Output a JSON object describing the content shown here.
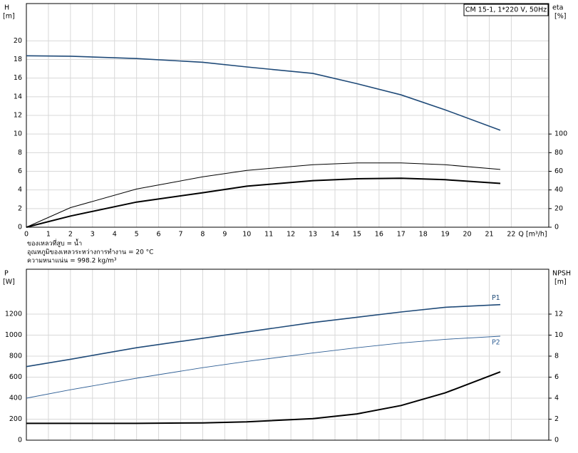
{
  "chart_data": [
    {
      "type": "line",
      "box_label": "CM 15-1, 1*220 V, 50Hz",
      "y_label": "H",
      "y_unit": "[m]",
      "y2_label": "eta",
      "y2_unit": "[%]",
      "x_label": "Q [m³/h]",
      "notes": [
        "ของเหลวที่สูบ = น้ำ",
        "อุณหภูมิของเหลวระหว่างการทำงาน = 20 °C",
        "ความหนาแน่น = 998.2 kg/m³"
      ],
      "x": [
        0,
        2,
        5,
        8,
        10,
        13,
        15,
        17,
        19,
        21.5
      ],
      "xlim": [
        0,
        23.7
      ],
      "xticks": [
        0,
        1,
        2,
        3,
        4,
        5,
        6,
        7,
        8,
        9,
        10,
        11,
        12,
        13,
        14,
        15,
        16,
        17,
        18,
        19,
        20,
        21,
        22
      ],
      "ylim": [
        0,
        24
      ],
      "yticks": [
        0,
        2,
        4,
        6,
        8,
        10,
        12,
        14,
        16,
        18,
        20
      ],
      "y2lim": [
        0,
        240
      ],
      "y2ticks": [
        0,
        20,
        40,
        60,
        80,
        100
      ],
      "grid": true,
      "series": [
        {
          "color": "#1f4a78",
          "width": 1.6,
          "axis": "y",
          "values": [
            18.4,
            18.35,
            18.1,
            17.7,
            17.2,
            16.5,
            15.4,
            14.2,
            12.6,
            10.4
          ]
        },
        {
          "color": "#000000",
          "width": 1,
          "axis": "y2",
          "values": [
            0,
            21,
            41,
            54,
            61,
            67,
            69,
            69,
            67,
            62
          ]
        },
        {
          "color": "#000000",
          "width": 2,
          "axis": "y2",
          "values": [
            0,
            12,
            27,
            37,
            44,
            50,
            52,
            52.5,
            51,
            47
          ]
        }
      ]
    },
    {
      "type": "line",
      "y_label": "P",
      "y_unit": "[W]",
      "y2_label": "NPSH",
      "y2_unit": "[m]",
      "x": [
        0,
        2,
        5,
        8,
        10,
        13,
        15,
        17,
        19,
        21.5
      ],
      "xlim": [
        0,
        23.7
      ],
      "xticks": [
        0,
        1,
        2,
        3,
        4,
        5,
        6,
        7,
        8,
        9,
        10,
        11,
        12,
        13,
        14,
        15,
        16,
        17,
        18,
        19,
        20,
        21,
        22
      ],
      "ylim": [
        0,
        1627
      ],
      "yticks": [
        0,
        200,
        400,
        600,
        800,
        1000,
        1200
      ],
      "y2lim": [
        0,
        16.27
      ],
      "y2ticks": [
        0,
        2,
        4,
        6,
        8,
        10,
        12
      ],
      "grid": true,
      "series": [
        {
          "name": "P1",
          "color": "#1f4a78",
          "width": 1.6,
          "axis": "y",
          "values": [
            700,
            770,
            880,
            970,
            1030,
            1120,
            1170,
            1220,
            1265,
            1290
          ]
        },
        {
          "name": "P2",
          "color": "#2f5f95",
          "width": 0.9,
          "axis": "y",
          "values": [
            400,
            480,
            590,
            690,
            750,
            830,
            880,
            925,
            960,
            990
          ]
        },
        {
          "color": "#000000",
          "width": 2,
          "axis": "y2",
          "values": [
            1.6,
            1.6,
            1.6,
            1.65,
            1.75,
            2.05,
            2.5,
            3.3,
            4.5,
            6.5
          ]
        }
      ]
    }
  ]
}
